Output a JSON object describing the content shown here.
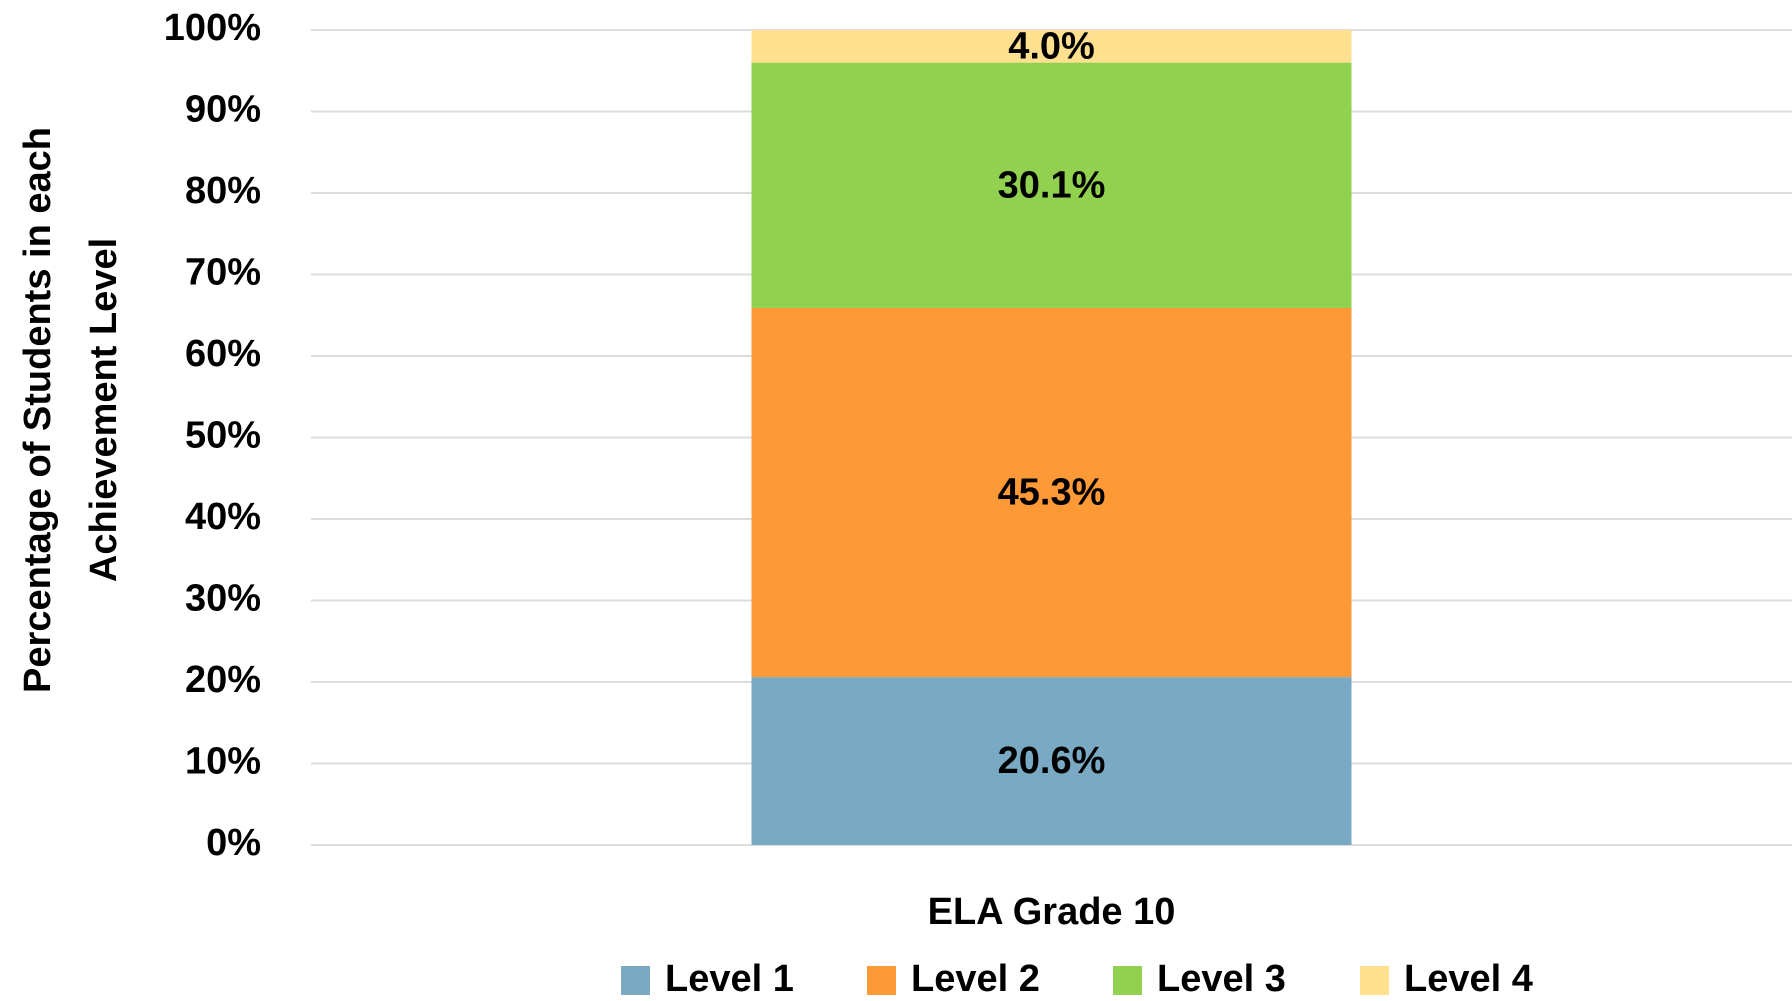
{
  "chart_data": {
    "type": "stacked_bar",
    "y_label": [
      "Percentage of Students in each",
      "Achievement Level"
    ],
    "categories": [
      "ELA Grade 10"
    ],
    "series": [
      {
        "name": "Level 1",
        "color": "#7aa9c4",
        "values": [
          20.6
        ],
        "value_labels": [
          "20.6%"
        ]
      },
      {
        "name": "Level 2",
        "color": "#fd9a37",
        "values": [
          45.3
        ],
        "value_labels": [
          "45.3%"
        ]
      },
      {
        "name": "Level 3",
        "color": "#92d050",
        "values": [
          30.1
        ],
        "value_labels": [
          "30.1%"
        ]
      },
      {
        "name": "Level 4",
        "color": "#ffe08f",
        "values": [
          4.0
        ],
        "value_labels": [
          "4.0%"
        ]
      }
    ],
    "ylim": [
      0,
      100
    ],
    "yticks": [
      {
        "value": 0,
        "label": "0%"
      },
      {
        "value": 10,
        "label": "10%"
      },
      {
        "value": 20,
        "label": "20%"
      },
      {
        "value": 30,
        "label": "30%"
      },
      {
        "value": 40,
        "label": "40%"
      },
      {
        "value": 50,
        "label": "50%"
      },
      {
        "value": 60,
        "label": "60%"
      },
      {
        "value": 70,
        "label": "70%"
      },
      {
        "value": 80,
        "label": "80%"
      },
      {
        "value": 90,
        "label": "90%"
      },
      {
        "value": 100,
        "label": "100%"
      }
    ],
    "grid": true,
    "legend": "bottom"
  }
}
